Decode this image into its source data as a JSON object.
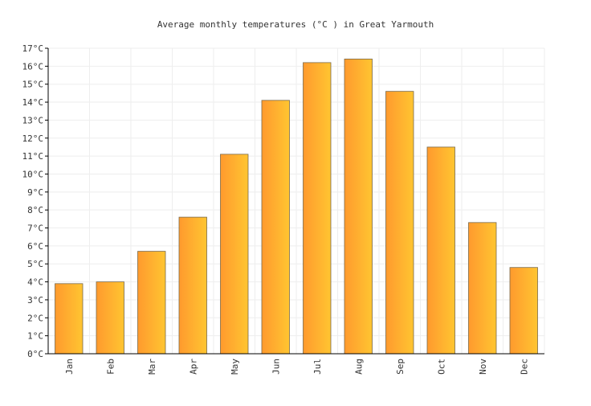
{
  "chart_data": {
    "type": "bar",
    "title": "Average monthly temperatures (°C ) in Great Yarmouth",
    "xlabel": "",
    "ylabel": "",
    "categories": [
      "Jan",
      "Feb",
      "Mar",
      "Apr",
      "May",
      "Jun",
      "Jul",
      "Aug",
      "Sep",
      "Oct",
      "Nov",
      "Dec"
    ],
    "values": [
      3.9,
      4.0,
      5.7,
      7.6,
      11.1,
      14.1,
      16.2,
      16.4,
      14.6,
      11.5,
      7.3,
      4.8
    ],
    "ylim": [
      0,
      17
    ],
    "ytick_step": 1,
    "ytick_labels": [
      "0°C",
      "1°C",
      "2°C",
      "3°C",
      "4°C",
      "5°C",
      "6°C",
      "7°C",
      "8°C",
      "9°C",
      "10°C",
      "11°C",
      "12°C",
      "13°C",
      "14°C",
      "15°C",
      "16°C",
      "17°C"
    ],
    "grid": true,
    "legend": "none",
    "colors": {
      "bar_gradient_start": "#ff9a2e",
      "bar_gradient_end": "#ffc531",
      "bar_outline": "#7a6a4a",
      "grid": "#eeeeee",
      "axis": "#000000"
    }
  }
}
